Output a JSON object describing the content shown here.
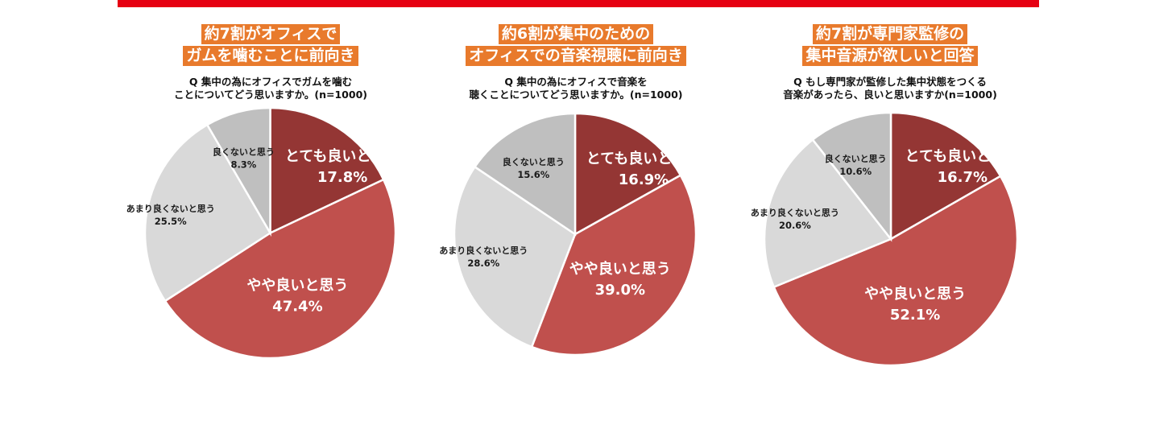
{
  "colors": {
    "top_bar": "#e60012",
    "headline_bg": "#e87a2c",
    "very_good": "#943634",
    "somewhat_good": "#c0504d",
    "not_very_good": "#d9d9d9",
    "not_good": "#bfbfbf",
    "label_dark": "#1a1a1a",
    "label_light": "#ffffff"
  },
  "chart_data": [
    {
      "type": "pie",
      "headline": [
        "約7割がオフィスで",
        "ガムを噛むことに前向き"
      ],
      "question": [
        "Q 集中の為にオフィスでガムを噛む",
        "ことについてどう思いますか。(n=1000)"
      ],
      "slices": [
        {
          "label": "とても良いと思う",
          "value": 17.8,
          "value_text": "17.8%"
        },
        {
          "label": "やや良いと思う",
          "value": 47.4,
          "value_text": "47.4%"
        },
        {
          "label": "あまり良くないと思う",
          "value": 25.5,
          "value_text": "25.5%"
        },
        {
          "label": "良くないと思う",
          "value": 8.3,
          "value_text": "8.3%"
        }
      ]
    },
    {
      "type": "pie",
      "headline": [
        "約6割が集中のための",
        "オフィスでの音楽視聴に前向き"
      ],
      "question": [
        "Q 集中の為にオフィスで音楽を",
        "聴くことについてどう思いますか。(n=1000)"
      ],
      "slices": [
        {
          "label": "とても良いと思う",
          "value": 16.9,
          "value_text": "16.9%"
        },
        {
          "label": "やや良いと思う",
          "value": 39.0,
          "value_text": "39.0%"
        },
        {
          "label": "あまり良くないと思う",
          "value": 28.6,
          "value_text": "28.6%"
        },
        {
          "label": "良くないと思う",
          "value": 15.6,
          "value_text": "15.6%"
        }
      ]
    },
    {
      "type": "pie",
      "headline": [
        "約7割が専門家監修の",
        "集中音源が欲しいと回答"
      ],
      "question": [
        "Q もし専門家が監修した集中状態をつくる",
        "音楽があったら、良いと思いますか(n=1000)"
      ],
      "slices": [
        {
          "label": "とても良いと思う",
          "value": 16.7,
          "value_text": "16.7%"
        },
        {
          "label": "やや良いと思う",
          "value": 52.1,
          "value_text": "52.1%"
        },
        {
          "label": "あまり良くないと思う",
          "value": 20.6,
          "value_text": "20.6%"
        },
        {
          "label": "良くないと思う",
          "value": 10.6,
          "value_text": "10.6%"
        }
      ]
    }
  ]
}
